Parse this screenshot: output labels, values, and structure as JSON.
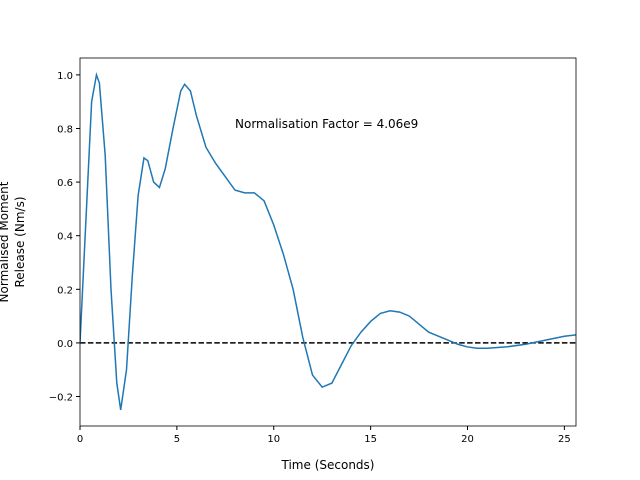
{
  "chart_data": {
    "type": "line",
    "xlabel": "Time (Seconds)",
    "ylabel": [
      "Normalised Moment",
      "Release (Nm/s)"
    ],
    "annotation": "Normalisation Factor = 4.06e9",
    "hline": 0,
    "x": [
      0,
      0.3,
      0.6,
      0.85,
      1.0,
      1.3,
      1.6,
      1.9,
      2.1,
      2.4,
      2.7,
      3.0,
      3.3,
      3.5,
      3.8,
      4.1,
      4.4,
      4.8,
      5.2,
      5.4,
      5.7,
      6.0,
      6.5,
      7.0,
      7.5,
      8.0,
      8.5,
      9.0,
      9.5,
      10.0,
      10.5,
      11.0,
      11.5,
      12.0,
      12.5,
      13.0,
      13.5,
      14.0,
      14.5,
      15.0,
      15.5,
      16.0,
      16.5,
      17.0,
      17.5,
      18.0,
      18.5,
      19.0,
      19.5,
      20.0,
      20.5,
      21.0,
      22.0,
      23.0,
      24.0,
      25.0,
      25.6
    ],
    "series": [
      {
        "color": "#1f77b4",
        "values": [
          0,
          0.45,
          0.9,
          1.0,
          0.97,
          0.7,
          0.2,
          -0.15,
          -0.25,
          -0.1,
          0.25,
          0.55,
          0.69,
          0.68,
          0.6,
          0.58,
          0.65,
          0.8,
          0.94,
          0.965,
          0.94,
          0.85,
          0.73,
          0.67,
          0.62,
          0.57,
          0.56,
          0.56,
          0.53,
          0.44,
          0.33,
          0.2,
          0.02,
          -0.12,
          -0.165,
          -0.15,
          -0.08,
          -0.01,
          0.04,
          0.08,
          0.11,
          0.12,
          0.115,
          0.1,
          0.07,
          0.04,
          0.025,
          0.01,
          -0.005,
          -0.015,
          -0.02,
          -0.02,
          -0.015,
          -0.005,
          0.01,
          0.025,
          0.03
        ]
      }
    ],
    "xlim": [
      0,
      25.6
    ],
    "ylim": [
      -0.31,
      1.063
    ],
    "xticks": [
      0,
      5,
      10,
      15,
      20,
      25
    ],
    "yticks": [
      {
        "value": -0.2,
        "label": "−0.2"
      },
      {
        "value": 0,
        "label": "0.0"
      },
      0.2,
      0.4,
      0.6,
      0.8,
      {
        "value": 1,
        "label": "1.0"
      }
    ]
  }
}
